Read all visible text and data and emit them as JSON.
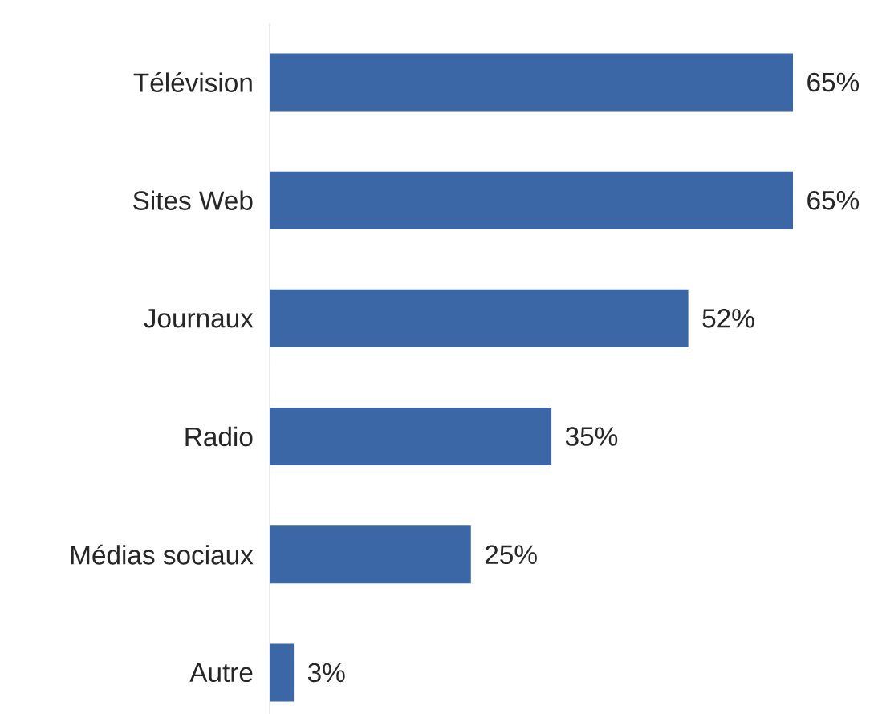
{
  "chart_data": {
    "type": "bar",
    "orientation": "horizontal",
    "categories": [
      "Télévision",
      "Sites Web",
      "Journaux",
      "Radio",
      "Médias sociaux",
      "Autre"
    ],
    "values": [
      65,
      65,
      52,
      35,
      25,
      3
    ],
    "value_labels": [
      "65%",
      "65%",
      "52%",
      "35%",
      "25%",
      "3%"
    ],
    "color": "#3b67a6"
  }
}
